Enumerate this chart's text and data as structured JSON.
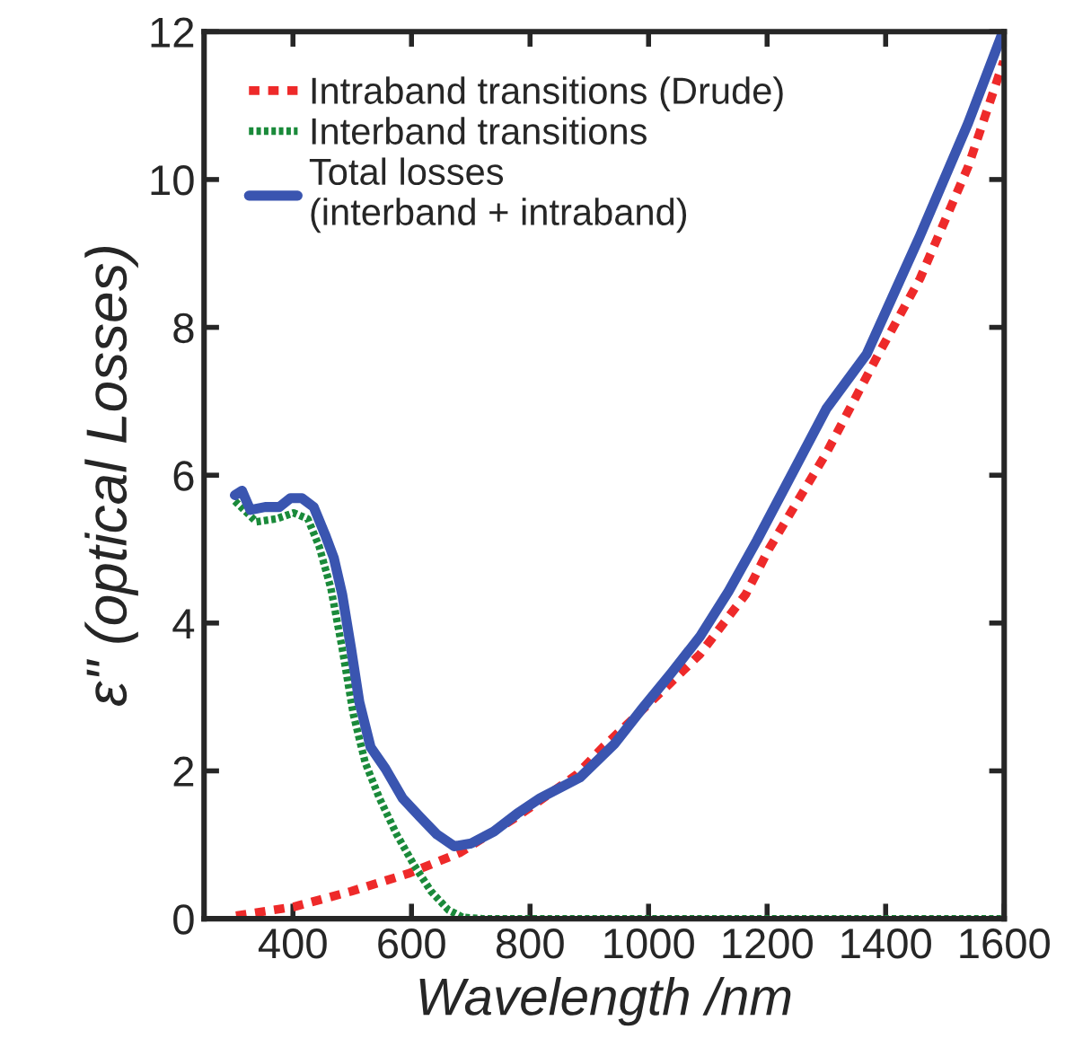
{
  "chart_data": {
    "type": "line",
    "xlabel": "Wavelength /nm",
    "ylabel": "ε\" (optical Losses)",
    "xlim": [
      250,
      1600
    ],
    "xticks": [
      400,
      600,
      800,
      1000,
      1200,
      1400,
      1600
    ],
    "ylim": [
      0,
      12
    ],
    "yticks": [
      0,
      2,
      4,
      6,
      8,
      10,
      12
    ],
    "grid": false,
    "legend": "top left",
    "marker": "none",
    "series": [
      {
        "name": "Intraband transitions (Drude)",
        "color": "#ee2a2a",
        "line_style": "dashed",
        "x": [
          304,
          401,
          498,
          594,
          681,
          778,
          879,
          923,
          1019,
          1087,
          1164,
          1203,
          1300,
          1388,
          1458,
          1539,
          1599
        ],
        "values": [
          0.04,
          0.16,
          0.37,
          0.61,
          0.89,
          1.38,
          1.95,
          2.32,
          3.05,
          3.58,
          4.39,
          5.0,
          6.3,
          7.64,
          8.66,
          10.17,
          11.6
        ]
      },
      {
        "name": "Interband transitions",
        "color": "#1a8a3a",
        "line_style": "dotted",
        "x": [
          302,
          338,
          372,
          401,
          425,
          444,
          464,
          483,
          502,
          522,
          546,
          575,
          604,
          633,
          662,
          686,
          720,
          800,
          1000,
          1200,
          1400,
          1600
        ],
        "values": [
          5.65,
          5.37,
          5.41,
          5.49,
          5.41,
          5.04,
          4.47,
          3.66,
          2.76,
          2.11,
          1.63,
          1.14,
          0.73,
          0.37,
          0.12,
          0.02,
          0,
          0,
          0,
          0,
          0,
          0
        ]
      },
      {
        "name": "Total losses\n(interband + intraband)",
        "color": "#3a55b0",
        "line_style": "solid",
        "x": [
          302,
          314,
          328,
          353,
          377,
          396,
          415,
          435,
          454,
          469,
          483,
          498,
          512,
          531,
          556,
          585,
          614,
          643,
          672,
          701,
          739,
          778,
          817,
          884,
          942,
          990,
          1039,
          1087,
          1135,
          1183,
          1300,
          1368,
          1458,
          1539,
          1598
        ],
        "values": [
          5.73,
          5.79,
          5.53,
          5.57,
          5.57,
          5.69,
          5.69,
          5.57,
          5.2,
          4.88,
          4.39,
          3.66,
          2.93,
          2.32,
          2.03,
          1.63,
          1.38,
          1.14,
          0.98,
          1.02,
          1.18,
          1.42,
          1.63,
          1.91,
          2.36,
          2.85,
          3.33,
          3.82,
          4.43,
          5.12,
          6.9,
          7.64,
          9.24,
          10.76,
          12.0
        ]
      }
    ]
  }
}
